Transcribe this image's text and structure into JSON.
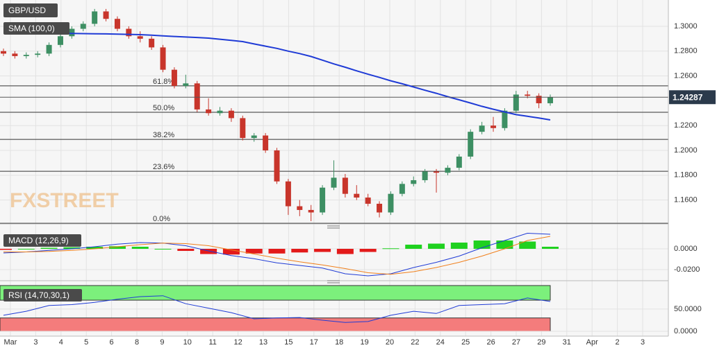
{
  "chart_data": [
    {
      "type": "candlestick",
      "title": "GBP/USD",
      "watermark": "FXSTREET",
      "ylim": [
        1.1408,
        1.3212
      ],
      "yticks": [
        {
          "value": 1.3,
          "label": "1.3000"
        },
        {
          "value": 1.28,
          "label": "1.2800"
        },
        {
          "value": 1.26,
          "label": "1.2600"
        },
        {
          "value": 1.22,
          "label": "1.2200"
        },
        {
          "value": 1.2,
          "label": "1.2000"
        },
        {
          "value": 1.18,
          "label": "1.1800"
        },
        {
          "value": 1.16,
          "label": "1.1600"
        }
      ],
      "x_tick_labels": [
        "Mar",
        "3",
        "4",
        "5",
        "6",
        "8",
        "9",
        "10",
        "11",
        "12",
        "13",
        "15",
        "17",
        "18",
        "19",
        "20",
        "22",
        "24",
        "25",
        "26",
        "27",
        "29",
        "31",
        "Apr",
        "2",
        "3"
      ],
      "up_color": "#3d8f63",
      "down_color": "#c8352b",
      "open": [
        1.28,
        1.278,
        1.276,
        1.277,
        1.278,
        1.285,
        1.292,
        1.298,
        1.302,
        1.312,
        1.306,
        1.298,
        1.292,
        1.29,
        1.283,
        1.265,
        1.252,
        1.254,
        1.233,
        1.23,
        1.232,
        1.226,
        1.21,
        1.212,
        1.2,
        1.175,
        1.155,
        1.152,
        1.15,
        1.17,
        1.178,
        1.165,
        1.162,
        1.157,
        1.15,
        1.165,
        1.173,
        1.176,
        1.183,
        1.182,
        1.186,
        1.195,
        1.215,
        1.22,
        1.218,
        1.232,
        1.245,
        1.244,
        1.238
      ],
      "high": [
        1.282,
        1.28,
        1.279,
        1.28,
        1.287,
        1.294,
        1.3,
        1.304,
        1.314,
        1.314,
        1.308,
        1.3,
        1.296,
        1.292,
        1.285,
        1.267,
        1.261,
        1.256,
        1.242,
        1.235,
        1.234,
        1.228,
        1.214,
        1.214,
        1.202,
        1.177,
        1.16,
        1.156,
        1.172,
        1.192,
        1.181,
        1.172,
        1.165,
        1.159,
        1.167,
        1.175,
        1.179,
        1.185,
        1.185,
        1.188,
        1.197,
        1.217,
        1.223,
        1.227,
        1.234,
        1.248,
        1.248,
        1.246,
        1.245
      ],
      "low": [
        1.276,
        1.274,
        1.274,
        1.275,
        1.276,
        1.283,
        1.29,
        1.296,
        1.3,
        1.304,
        1.296,
        1.29,
        1.287,
        1.281,
        1.263,
        1.25,
        1.25,
        1.231,
        1.228,
        1.228,
        1.223,
        1.208,
        1.207,
        1.198,
        1.173,
        1.148,
        1.147,
        1.143,
        1.148,
        1.168,
        1.162,
        1.16,
        1.155,
        1.146,
        1.148,
        1.163,
        1.171,
        1.174,
        1.166,
        1.18,
        1.184,
        1.193,
        1.213,
        1.215,
        1.216,
        1.23,
        1.242,
        1.234,
        1.236
      ],
      "close": [
        1.278,
        1.276,
        1.277,
        1.278,
        1.285,
        1.292,
        1.298,
        1.302,
        1.312,
        1.306,
        1.298,
        1.292,
        1.29,
        1.283,
        1.265,
        1.252,
        1.254,
        1.233,
        1.23,
        1.232,
        1.226,
        1.21,
        1.212,
        1.2,
        1.175,
        1.155,
        1.152,
        1.15,
        1.17,
        1.178,
        1.165,
        1.162,
        1.157,
        1.15,
        1.165,
        1.173,
        1.176,
        1.183,
        1.182,
        1.186,
        1.195,
        1.215,
        1.22,
        1.218,
        1.232,
        1.245,
        1.244,
        1.238,
        1.2429
      ],
      "series": [
        {
          "name": "SMA (100,0)",
          "color": "#1f3bd6",
          "values": [
            1.295,
            1.2949,
            1.2948,
            1.2946,
            1.2945,
            1.2944,
            1.2943,
            1.2941,
            1.294,
            1.2939,
            1.2937,
            1.2935,
            1.2933,
            1.2928,
            1.2923,
            1.2918,
            1.2914,
            1.291,
            1.2905,
            1.2896,
            1.2887,
            1.2877,
            1.2858,
            1.284,
            1.2822,
            1.28,
            1.278,
            1.2757,
            1.2727,
            1.2697,
            1.267,
            1.2641,
            1.2614,
            1.2588,
            1.2561,
            1.2537,
            1.2511,
            1.2485,
            1.246,
            1.2433,
            1.2408,
            1.2382,
            1.2355,
            1.2332,
            1.231,
            1.2288,
            1.2275,
            1.2261,
            1.2246
          ]
        }
      ],
      "fib_levels": [
        {
          "label": "61.8%",
          "value": 1.252
        },
        {
          "label": "50.0%",
          "value": 1.2307
        },
        {
          "label": "38.2%",
          "value": 1.2089
        },
        {
          "label": "23.6%",
          "value": 1.1832
        },
        {
          "label": "0.0%",
          "value": 1.1413
        }
      ],
      "last_price": 1.24287
    },
    {
      "type": "macd",
      "title": "MACD (12,26,9)",
      "ylim": [
        -0.0273,
        0.016
      ],
      "yticks": [
        {
          "value": 0,
          "label": "0.0000"
        },
        {
          "value": -0.02,
          "label": "-0.0200"
        }
      ],
      "histogram": {
        "up_color": "#1fd11f",
        "down_color": "#e31a1a",
        "values": [
          -0.001,
          0.0,
          0.001,
          0.0015,
          0.002,
          0.0025,
          0.002,
          0.0,
          -0.002,
          -0.005,
          -0.0055,
          -0.0045,
          -0.0045,
          -0.0035,
          -0.003,
          -0.005,
          -0.003,
          0.0005,
          0.004,
          0.005,
          0.006,
          0.008,
          0.008,
          0.007,
          0.002
        ]
      },
      "series": [
        {
          "color": "#1f3bd6",
          "values": [
            -0.004,
            -0.003,
            -0.0015,
            0.0,
            0.002,
            0.0045,
            0.006,
            0.0055,
            0.003,
            -0.002,
            -0.0065,
            -0.0095,
            -0.0135,
            -0.016,
            -0.0185,
            -0.024,
            -0.026,
            -0.024,
            -0.018,
            -0.013,
            -0.007,
            0.001,
            0.008,
            0.015,
            0.014
          ]
        },
        {
          "color": "#f07f1a",
          "values": [
            -0.003,
            -0.003,
            -0.0025,
            -0.0015,
            0.0,
            0.002,
            0.004,
            0.0055,
            0.005,
            0.003,
            -0.001,
            -0.005,
            -0.009,
            -0.0125,
            -0.0155,
            -0.019,
            -0.023,
            -0.0245,
            -0.022,
            -0.018,
            -0.013,
            -0.007,
            0.0,
            0.008,
            0.012
          ]
        }
      ]
    },
    {
      "type": "rsi",
      "title": "RSI (14,70,30,1)",
      "ylim": [
        0,
        106
      ],
      "yticks": [
        {
          "value": 50,
          "label": "50.0000"
        },
        {
          "value": 0,
          "label": "0.0000"
        }
      ],
      "overbought": 70,
      "oversold": 30,
      "overbought_color": "#7cf07c",
      "oversold_color": "#f47c7c",
      "color": "#1f3bd6",
      "values": [
        36,
        45,
        58,
        60,
        65,
        72,
        78,
        80,
        62,
        52,
        42,
        28,
        30,
        31,
        25,
        20,
        22,
        36,
        45,
        40,
        58,
        60,
        62,
        75,
        67
      ]
    }
  ]
}
